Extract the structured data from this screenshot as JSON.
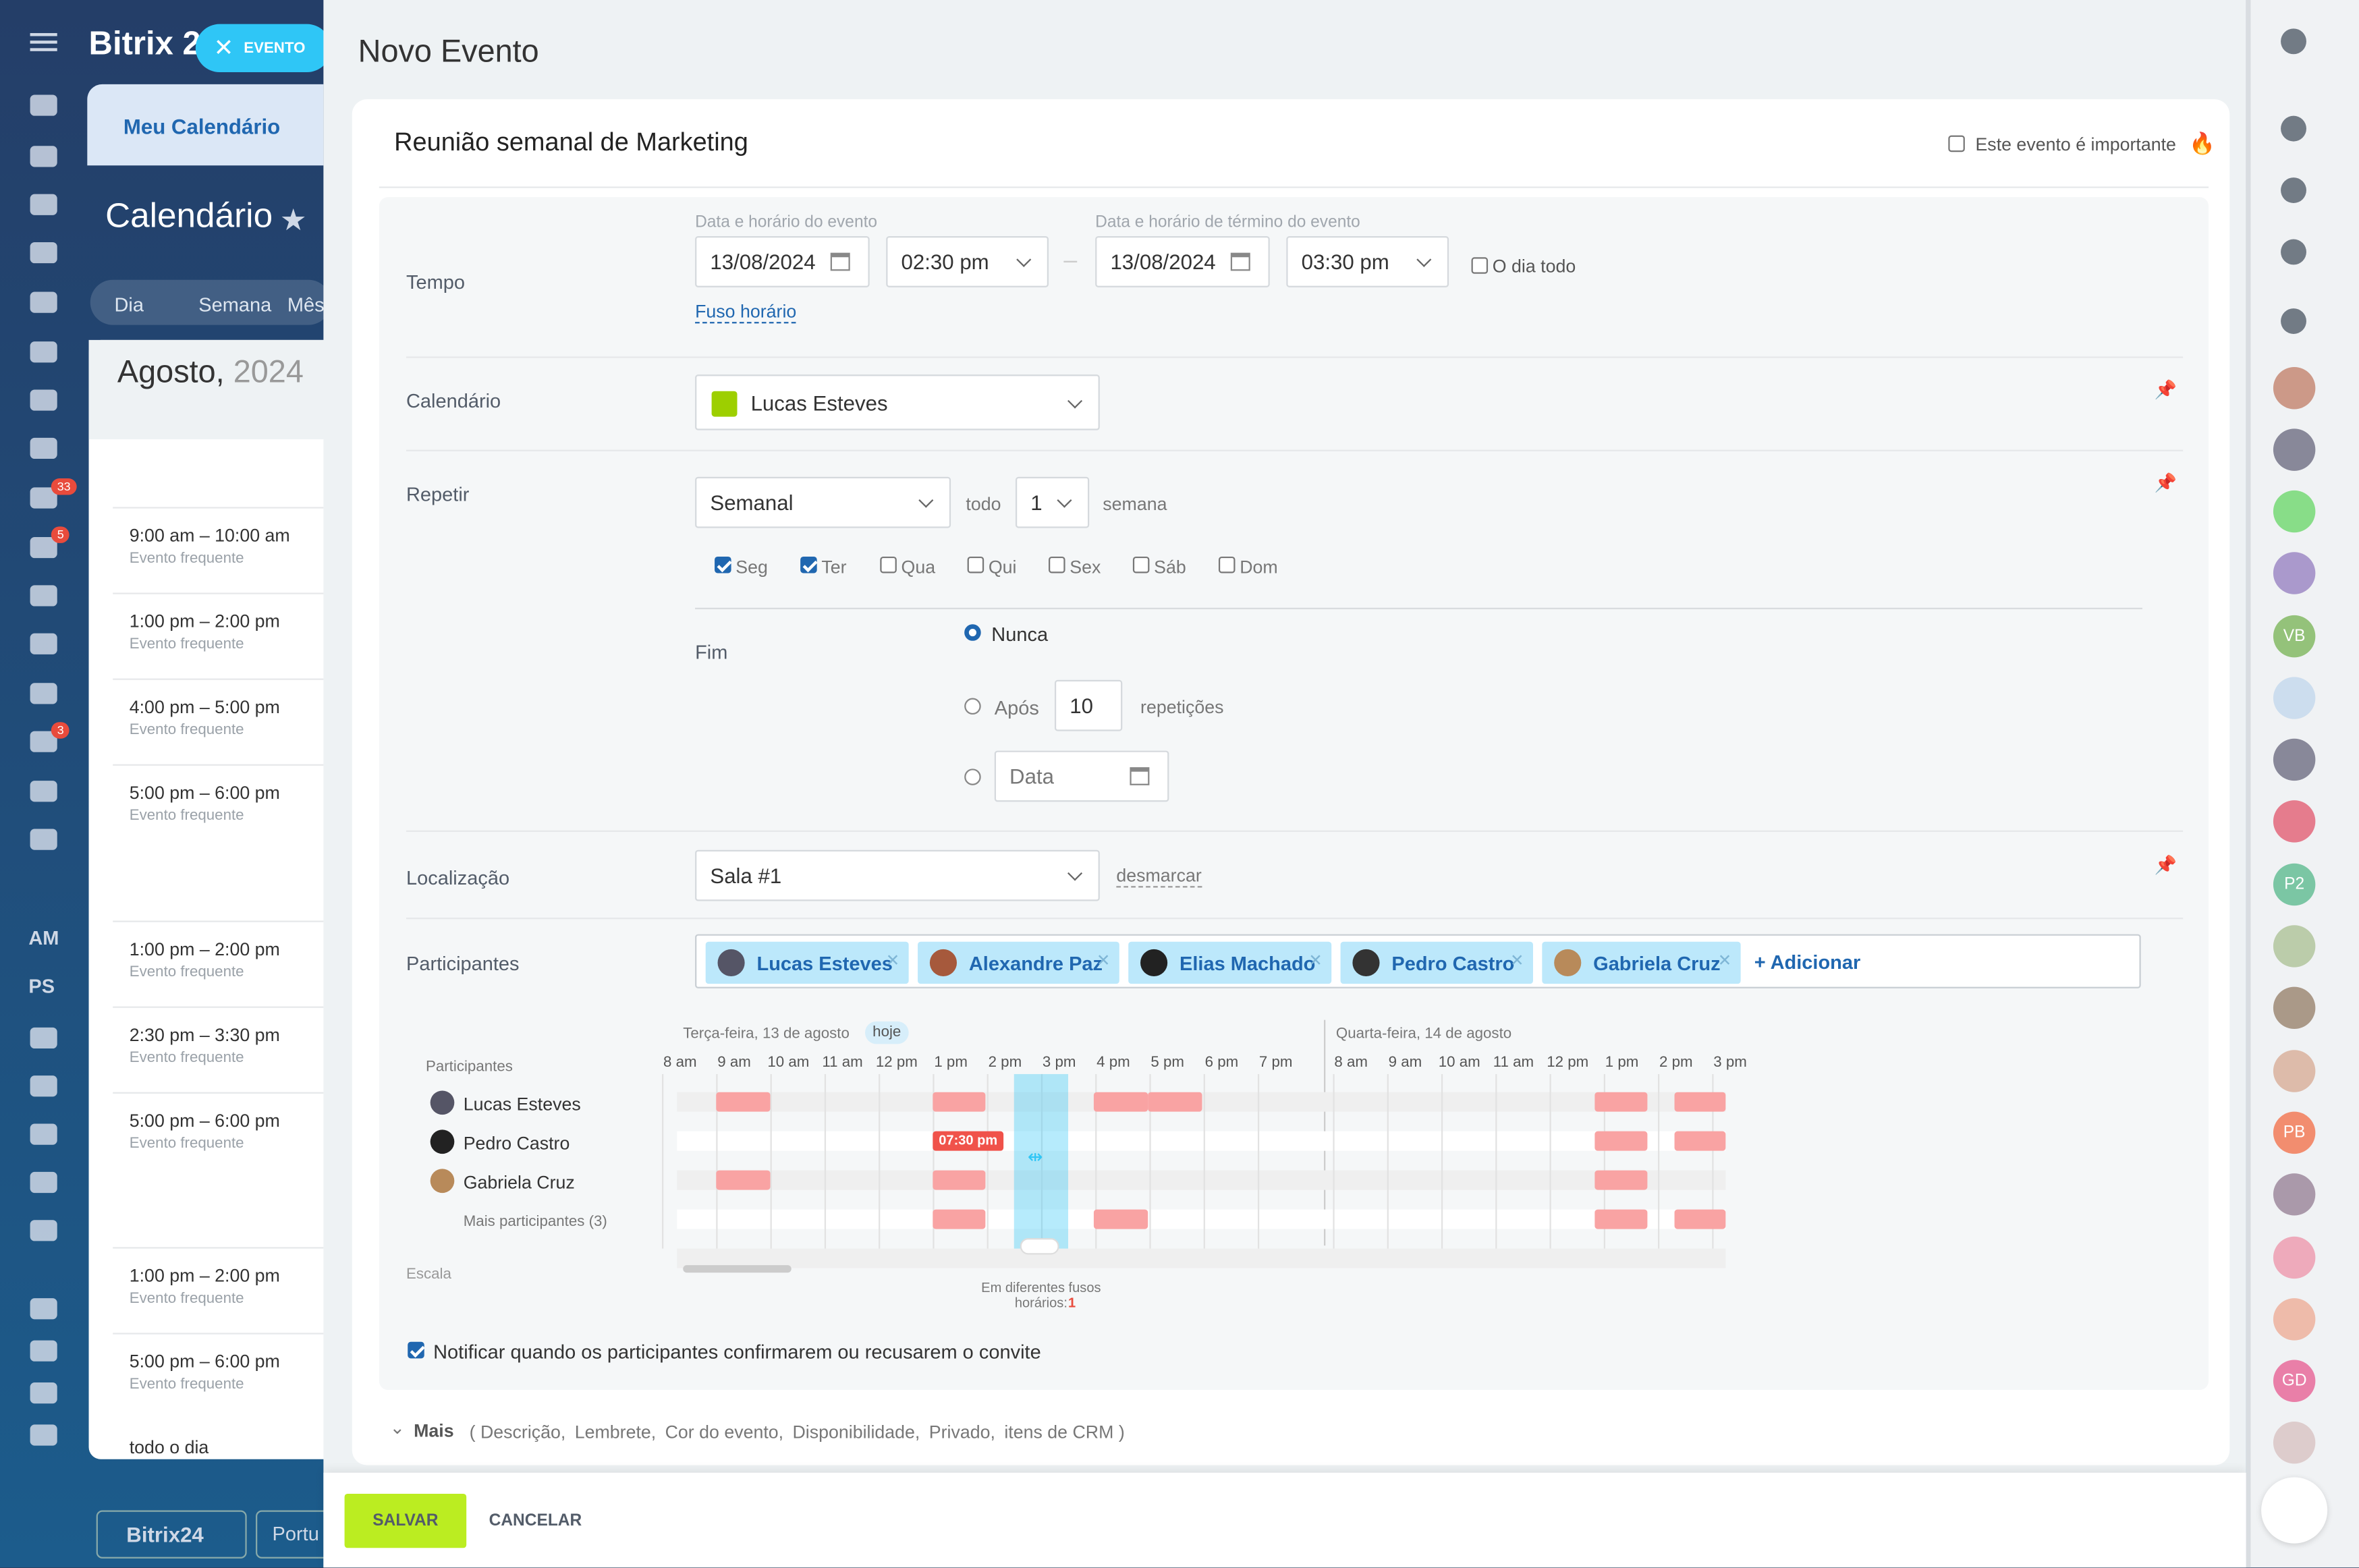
{
  "sidebar": {
    "logo": "Bitrix 2",
    "badges": [
      "33",
      "5",
      "3"
    ],
    "initials": [
      "AM",
      "PS"
    ],
    "tab": "Meu Calendário",
    "title": "Calendário",
    "views": [
      "Dia",
      "Semana",
      "Mês"
    ],
    "month": "Agosto,",
    "year": "2024",
    "events": [
      {
        "time": "9:00 am – 10:00 am",
        "note": "Evento frequente"
      },
      {
        "time": "1:00 pm – 2:00 pm",
        "note": "Evento frequente"
      },
      {
        "time": "4:00 pm – 5:00 pm",
        "note": "Evento frequente"
      },
      {
        "time": "5:00 pm – 6:00 pm",
        "note": "Evento frequente"
      },
      {
        "time": "1:00 pm – 2:00 pm",
        "note": "Evento frequente"
      },
      {
        "time": "2:30 pm – 3:30 pm",
        "note": "Evento frequente"
      },
      {
        "time": "5:00 pm – 6:00 pm",
        "note": "Evento frequente"
      },
      {
        "time": "1:00 pm – 2:00 pm",
        "note": "Evento frequente"
      },
      {
        "time": "5:00 pm – 6:00 pm",
        "note": "Evento frequente"
      }
    ],
    "all_day": "todo o dia",
    "footer": [
      "Bitrix24",
      "Portu"
    ]
  },
  "close_button": "EVENTO",
  "header": {
    "title": "Novo Evento"
  },
  "form": {
    "name": "Reunião semanal de Marketing",
    "important": "Este evento é importante",
    "time": {
      "label": "Tempo",
      "start_label": "Data e horário do evento",
      "start_date": "13/08/2024",
      "start_time": "02:30 pm",
      "end_label": "Data e horário de término do evento",
      "end_date": "13/08/2024",
      "end_time": "03:30 pm",
      "all_day": "O dia todo",
      "timezone": "Fuso horário"
    },
    "calendar": {
      "label": "Calendário",
      "value": "Lucas Esteves"
    },
    "repeat": {
      "label": "Repetir",
      "frequency": "Semanal",
      "every": "todo",
      "interval": "1",
      "unit": "semana",
      "days": [
        {
          "name": "Seg",
          "checked": true
        },
        {
          "name": "Ter",
          "checked": true
        },
        {
          "name": "Qua",
          "checked": false
        },
        {
          "name": "Qui",
          "checked": false
        },
        {
          "name": "Sex",
          "checked": false
        },
        {
          "name": "Sáb",
          "checked": false
        },
        {
          "name": "Dom",
          "checked": false
        }
      ],
      "end_label": "Fim",
      "never": "Nunca",
      "after": "Após",
      "count": "10",
      "repetitions": "repetições",
      "date": "Data"
    },
    "location": {
      "label": "Localização",
      "value": "Sala #1",
      "clear": "desmarcar"
    },
    "participants": {
      "label": "Participantes",
      "people": [
        "Lucas Esteves",
        "Alexandre Paz",
        "Elias Machado",
        "Pedro Castro",
        "Gabriela Cruz"
      ],
      "add": "+ Adicionar"
    },
    "planner": {
      "header": "Participantes",
      "day1": "Terça-feira, 13 de agosto",
      "today": "hoje",
      "day2": "Quarta-feira, 14 de agosto",
      "hours1": [
        "8 am",
        "9 am",
        "10 am",
        "11 am",
        "12 pm",
        "1 pm",
        "2 pm",
        "3 pm",
        "4 pm",
        "5 pm",
        "6 pm",
        "7 pm"
      ],
      "hours2": [
        "8 am",
        "9 am",
        "10 am",
        "11 am",
        "12 pm",
        "1 pm",
        "2 pm",
        "3 pm"
      ],
      "rows": [
        "Lucas Esteves",
        "Pedro Castro",
        "Gabriela Cruz"
      ],
      "more": "Mais participantes (3)",
      "scale": "Escala",
      "timezones": "Em diferentes fusos horários:",
      "timezones_count": "1",
      "marker": "07:30 pm"
    },
    "notify": "Notificar quando os participantes confirmarem ou recusarem o convite",
    "more": {
      "label": "Mais",
      "items": [
        "( Descrição,",
        "Lembrete,",
        "Cor do evento,",
        "Disponibilidade,",
        "Privado,",
        "itens de CRM )"
      ]
    }
  },
  "right_bar": {
    "initials": [
      "VB",
      "P2",
      "PB",
      "GD"
    ]
  },
  "footer": {
    "save": "SALVAR",
    "cancel": "CANCELAR"
  }
}
